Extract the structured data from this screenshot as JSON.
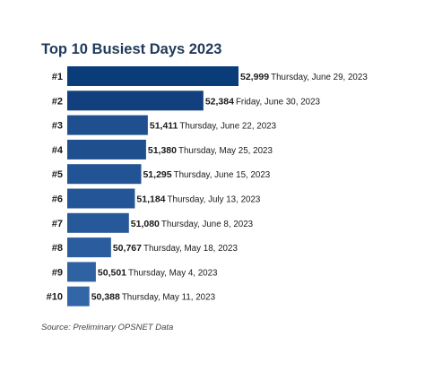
{
  "chart_data": {
    "type": "bar",
    "orientation": "horizontal",
    "title": "Top 10 Busiest Days 2023",
    "categories": [
      "#1",
      "#2",
      "#3",
      "#4",
      "#5",
      "#6",
      "#7",
      "#8",
      "#9",
      "#10"
    ],
    "values": [
      52999,
      52384,
      51411,
      51380,
      51295,
      51184,
      51080,
      50767,
      50501,
      50388
    ],
    "value_labels": [
      "52,999",
      "52,384",
      "51,411",
      "51,380",
      "51,295",
      "51,184",
      "51,080",
      "50,767",
      "50,501",
      "50,388"
    ],
    "dates": [
      "Thursday, June 29, 2023",
      "Friday, June 30, 2023",
      "Thursday, June 22, 2023",
      "Thursday, May 25, 2023",
      "Thursday, June 15, 2023",
      "Thursday, July 13, 2023",
      "Thursday, June 8, 2023",
      "Thursday, May 18, 2023",
      "Thursday, May 4, 2023",
      "Thursday, May 11, 2023"
    ],
    "xlim": [
      50000,
      53000
    ],
    "grid": false,
    "legend": "none",
    "bar_colors": [
      "#0b3c7a",
      "#123f7d",
      "#1f4f8e",
      "#1f4f8e",
      "#225395",
      "#245596",
      "#275899",
      "#2b5d9e",
      "#2f62a3",
      "#3366a6"
    ]
  },
  "source": "Source: Preliminary OPSNET Data"
}
